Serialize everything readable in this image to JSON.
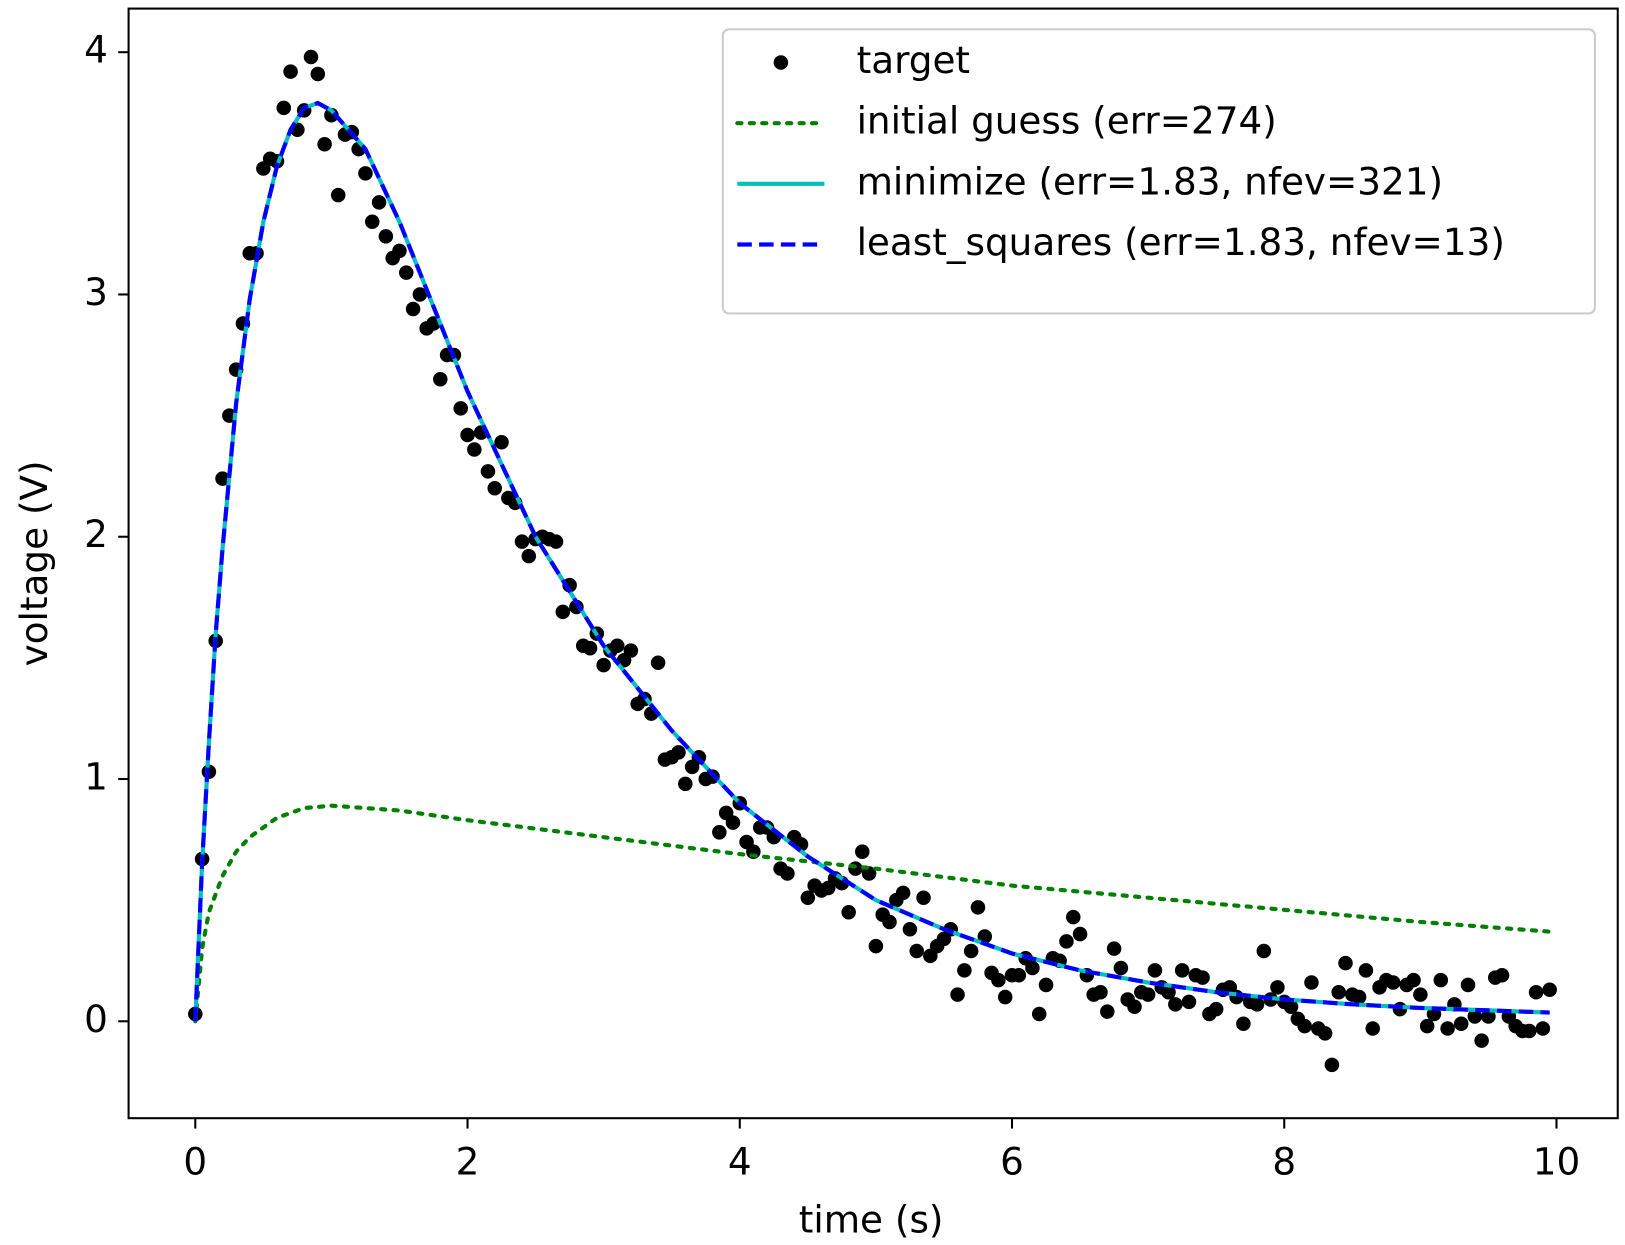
{
  "chart_data": {
    "type": "line",
    "xlabel": "time (s)",
    "ylabel": "voltage (V)",
    "xlim": [
      -0.49,
      10.45
    ],
    "ylim": [
      -0.4,
      4.18
    ],
    "xticks": [
      0,
      2,
      4,
      6,
      8,
      10
    ],
    "yticks": [
      0,
      1,
      2,
      3,
      4
    ],
    "grid": false,
    "legend": "upper right",
    "series": [
      {
        "name": "target",
        "color": "#000000",
        "linestyle": "none",
        "marker": "o",
        "x": [
          0,
          0.05,
          0.1,
          0.15,
          0.2,
          0.25,
          0.3,
          0.35,
          0.4,
          0.45,
          0.5,
          0.55,
          0.6,
          0.65,
          0.7,
          0.75,
          0.8,
          0.85,
          0.9,
          0.95,
          1,
          1.05,
          1.1,
          1.15,
          1.2,
          1.25,
          1.3,
          1.35,
          1.4,
          1.45,
          1.5,
          1.55,
          1.6,
          1.65,
          1.7,
          1.75,
          1.8,
          1.85,
          1.9,
          1.95,
          2,
          2.05,
          2.1,
          2.15,
          2.2,
          2.25,
          2.3,
          2.35,
          2.4,
          2.45,
          2.5,
          2.55,
          2.6,
          2.65,
          2.7,
          2.75,
          2.8,
          2.85,
          2.9,
          2.95,
          3,
          3.05,
          3.1,
          3.15,
          3.2,
          3.25,
          3.3,
          3.35,
          3.4,
          3.45,
          3.5,
          3.55,
          3.6,
          3.65,
          3.7,
          3.75,
          3.8,
          3.85,
          3.9,
          3.95,
          4,
          4.05,
          4.1,
          4.15,
          4.2,
          4.25,
          4.3,
          4.35,
          4.4,
          4.45,
          4.5,
          4.55,
          4.6,
          4.65,
          4.7,
          4.75,
          4.8,
          4.85,
          4.9,
          4.95,
          5,
          5.05,
          5.1,
          5.15,
          5.2,
          5.25,
          5.3,
          5.35,
          5.4,
          5.45,
          5.5,
          5.55,
          5.6,
          5.65,
          5.7,
          5.75,
          5.8,
          5.85,
          5.9,
          5.95,
          6,
          6.05,
          6.1,
          6.15,
          6.2,
          6.25,
          6.3,
          6.35,
          6.4,
          6.45,
          6.5,
          6.55,
          6.6,
          6.65,
          6.7,
          6.75,
          6.8,
          6.85,
          6.9,
          6.95,
          7,
          7.05,
          7.1,
          7.15,
          7.2,
          7.25,
          7.3,
          7.35,
          7.4,
          7.45,
          7.5,
          7.55,
          7.6,
          7.65,
          7.7,
          7.75,
          7.8,
          7.85,
          7.9,
          7.95,
          8,
          8.05,
          8.1,
          8.15,
          8.2,
          8.25,
          8.3,
          8.35,
          8.4,
          8.45,
          8.5,
          8.55,
          8.6,
          8.65,
          8.7,
          8.75,
          8.8,
          8.85,
          8.9,
          8.95,
          9,
          9.05,
          9.1,
          9.15,
          9.2,
          9.25,
          9.3,
          9.35,
          9.4,
          9.45,
          9.5,
          9.55,
          9.6,
          9.65,
          9.7,
          9.75,
          9.8,
          9.85,
          9.9,
          9.95
        ],
        "values": [
          0.03,
          0.67,
          1.03,
          1.57,
          2.24,
          2.5,
          2.69,
          2.88,
          3.17,
          3.17,
          3.52,
          3.56,
          3.55,
          3.77,
          3.92,
          3.68,
          3.76,
          3.98,
          3.91,
          3.62,
          3.74,
          3.41,
          3.66,
          3.67,
          3.6,
          3.5,
          3.3,
          3.38,
          3.24,
          3.15,
          3.18,
          3.09,
          2.94,
          3,
          2.86,
          2.88,
          2.65,
          2.75,
          2.75,
          2.53,
          2.42,
          2.36,
          2.43,
          2.27,
          2.2,
          2.39,
          2.16,
          2.14,
          1.98,
          1.92,
          1.99,
          2,
          1.99,
          1.98,
          1.69,
          1.8,
          1.71,
          1.55,
          1.54,
          1.6,
          1.47,
          1.53,
          1.55,
          1.49,
          1.53,
          1.31,
          1.33,
          1.27,
          1.48,
          1.08,
          1.09,
          1.11,
          0.98,
          1.05,
          1.09,
          1,
          1.01,
          0.78,
          0.86,
          0.82,
          0.9,
          0.74,
          0.7,
          0.8,
          0.8,
          0.76,
          0.63,
          0.61,
          0.76,
          0.73,
          0.51,
          0.56,
          0.54,
          0.55,
          0.59,
          0.57,
          0.45,
          0.63,
          0.7,
          0.61,
          0.31,
          0.44,
          0.41,
          0.5,
          0.53,
          0.38,
          0.29,
          0.51,
          0.27,
          0.31,
          0.34,
          0.38,
          0.11,
          0.21,
          0.29,
          0.47,
          0.35,
          0.2,
          0.17,
          0.1,
          0.19,
          0.19,
          0.26,
          0.22,
          0.03,
          0.15,
          0.26,
          0.25,
          0.33,
          0.43,
          0.36,
          0.19,
          0.11,
          0.12,
          0.04,
          0.3,
          0.22,
          0.09,
          0.06,
          0.12,
          0.11,
          0.21,
          0.14,
          0.12,
          0.07,
          0.21,
          0.08,
          0.19,
          0.18,
          0.03,
          0.05,
          0.13,
          0.14,
          0.1,
          -0.01,
          0.08,
          0.07,
          0.29,
          0.09,
          0.14,
          0.08,
          0.06,
          0.01,
          -0.02,
          0.16,
          -0.03,
          -0.05,
          -0.18,
          0.12,
          0.24,
          0.11,
          0.1,
          0.21,
          -0.03,
          0.14,
          0.17,
          0.16,
          0.05,
          0.15,
          0.17,
          0.11,
          -0.02,
          0.03,
          0.17,
          -0.03,
          0.07,
          -0.01,
          0.15,
          0.02,
          -0.08,
          0.02,
          0.18,
          0.19,
          0.02,
          -0.02,
          -0.04,
          -0.04,
          0.12,
          -0.03,
          0.13
        ]
      },
      {
        "name": "initial guess (err=274)",
        "color": "#008000",
        "linestyle": "dotted",
        "x": [
          0,
          0.05,
          0.1,
          0.2,
          0.3,
          0.4,
          0.6,
          0.8,
          1,
          1.5,
          2,
          3,
          4,
          5,
          6,
          7,
          8,
          9,
          9.95
        ],
        "values": [
          0,
          0.3,
          0.45,
          0.6,
          0.7,
          0.76,
          0.84,
          0.88,
          0.89,
          0.87,
          0.83,
          0.76,
          0.69,
          0.63,
          0.56,
          0.51,
          0.46,
          0.41,
          0.37
        ]
      },
      {
        "name": "minimize (err=1.83, nfev=321)",
        "color": "#00bfbf",
        "linestyle": "solid",
        "x": [
          0,
          0.05,
          0.1,
          0.15,
          0.2,
          0.3,
          0.4,
          0.5,
          0.6,
          0.7,
          0.8,
          0.9,
          1,
          1.25,
          1.5,
          2,
          2.5,
          3,
          3.5,
          4,
          4.5,
          5,
          5.5,
          6,
          6.5,
          7,
          7.5,
          8,
          8.5,
          9,
          9.5,
          9.95
        ],
        "values": [
          0,
          0.65,
          1.15,
          1.6,
          1.95,
          2.55,
          2.98,
          3.3,
          3.53,
          3.68,
          3.77,
          3.79,
          3.76,
          3.6,
          3.3,
          2.6,
          2,
          1.55,
          1.2,
          0.9,
          0.68,
          0.5,
          0.38,
          0.28,
          0.21,
          0.16,
          0.12,
          0.09,
          0.07,
          0.055,
          0.045,
          0.036
        ]
      },
      {
        "name": "least_squares (err=1.83, nfev=13)",
        "color": "#0000ff",
        "linestyle": "dashed",
        "x": [
          0,
          0.05,
          0.1,
          0.15,
          0.2,
          0.3,
          0.4,
          0.5,
          0.6,
          0.7,
          0.8,
          0.9,
          1,
          1.25,
          1.5,
          2,
          2.5,
          3,
          3.5,
          4,
          4.5,
          5,
          5.5,
          6,
          6.5,
          7,
          7.5,
          8,
          8.5,
          9,
          9.5,
          9.95
        ],
        "values": [
          0,
          0.65,
          1.15,
          1.6,
          1.95,
          2.55,
          2.98,
          3.3,
          3.53,
          3.68,
          3.77,
          3.79,
          3.76,
          3.6,
          3.3,
          2.6,
          2,
          1.55,
          1.2,
          0.9,
          0.68,
          0.5,
          0.38,
          0.28,
          0.21,
          0.16,
          0.12,
          0.09,
          0.07,
          0.055,
          0.045,
          0.036
        ]
      }
    ]
  }
}
